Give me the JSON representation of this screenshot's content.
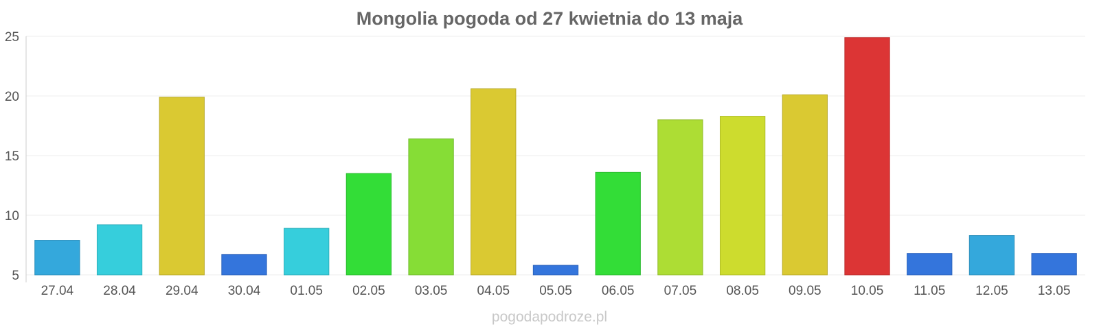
{
  "chart_data": {
    "type": "bar",
    "title": "Mongolia pogoda od 27 kwietnia do 13 maja",
    "xlabel": "",
    "ylabel": "",
    "categories": [
      "27.04",
      "28.04",
      "29.04",
      "30.04",
      "01.05",
      "02.05",
      "03.05",
      "04.05",
      "05.05",
      "06.05",
      "07.05",
      "08.05",
      "09.05",
      "10.05",
      "11.05",
      "12.05",
      "13.05"
    ],
    "values": [
      7.9,
      9.2,
      19.9,
      6.7,
      8.9,
      13.5,
      16.4,
      20.6,
      5.8,
      13.6,
      18.0,
      18.3,
      20.1,
      24.9,
      6.8,
      8.3,
      6.8
    ],
    "bar_colors": [
      "#34a8dc",
      "#36cedc",
      "#dac932",
      "#3475dc",
      "#36cedc",
      "#33dd37",
      "#86dd36",
      "#dac932",
      "#3475dc",
      "#33dd37",
      "#addd34",
      "#cddc2e",
      "#dac932",
      "#dc3535",
      "#3475dc",
      "#34a8dc",
      "#3475dc"
    ],
    "yticks": [
      "5",
      "10",
      "15",
      "20",
      "25"
    ],
    "ylim": [
      5,
      25
    ],
    "grid": true,
    "legend": "none"
  },
  "watermark": "pogodapodroze.pl"
}
